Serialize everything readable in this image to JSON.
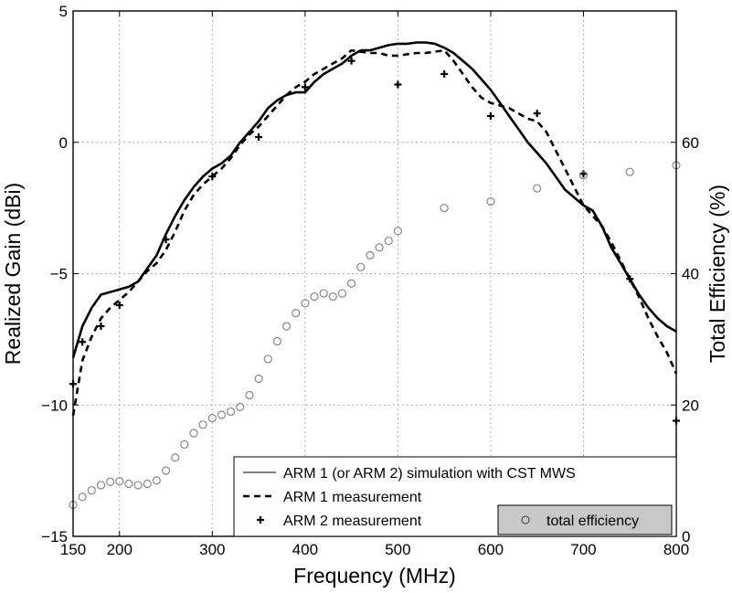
{
  "chart_data": {
    "type": "line",
    "xlabel": "Frequency (MHz)",
    "ylabel_left": "Realized Gain (dBi)",
    "ylabel_right": "Total Efficiency (%)",
    "xlim": [
      150,
      800
    ],
    "ylim_left": [
      -15,
      5
    ],
    "ylim_right": [
      0,
      80
    ],
    "grid": true,
    "x_ticks": [
      150,
      200,
      300,
      400,
      500,
      600,
      700,
      800
    ],
    "y_left_ticks": [
      -15,
      -10,
      -5,
      0,
      5
    ],
    "y_right_ticks": [
      0,
      20,
      40,
      60
    ],
    "legend_position": "bottom-right",
    "series": [
      {
        "name": "ARM 1 (or ARM 2) simulation with CST MWS",
        "axis": "left",
        "style": "solid",
        "x": [
          150,
          160,
          170,
          180,
          190,
          200,
          210,
          220,
          230,
          240,
          250,
          260,
          270,
          280,
          290,
          300,
          310,
          320,
          330,
          340,
          350,
          360,
          370,
          380,
          390,
          400,
          410,
          420,
          430,
          440,
          450,
          460,
          470,
          480,
          490,
          500,
          510,
          520,
          530,
          540,
          550,
          560,
          570,
          580,
          590,
          600,
          610,
          620,
          630,
          640,
          650,
          660,
          670,
          680,
          690,
          700,
          710,
          720,
          730,
          740,
          750,
          760,
          770,
          780,
          790,
          800
        ],
        "y": [
          -8.2,
          -7.0,
          -6.3,
          -5.8,
          -5.7,
          -5.6,
          -5.5,
          -5.3,
          -4.8,
          -4.3,
          -3.5,
          -2.8,
          -2.2,
          -1.7,
          -1.3,
          -1.0,
          -0.8,
          -0.5,
          0.0,
          0.4,
          0.8,
          1.3,
          1.6,
          1.8,
          1.9,
          1.9,
          2.3,
          2.6,
          2.8,
          3.0,
          3.3,
          3.5,
          3.5,
          3.6,
          3.7,
          3.75,
          3.75,
          3.8,
          3.8,
          3.75,
          3.6,
          3.4,
          3.1,
          2.8,
          2.4,
          2.0,
          1.5,
          1.0,
          0.5,
          0.0,
          -0.4,
          -0.8,
          -1.3,
          -1.8,
          -2.1,
          -2.4,
          -2.6,
          -3.2,
          -4.0,
          -4.6,
          -5.2,
          -5.8,
          -6.3,
          -6.7,
          -7.0,
          -7.2
        ]
      },
      {
        "name": "ARM 1 measurement",
        "axis": "left",
        "style": "dashed",
        "x": [
          150,
          160,
          170,
          180,
          190,
          200,
          210,
          220,
          230,
          240,
          250,
          260,
          270,
          280,
          290,
          300,
          310,
          320,
          330,
          340,
          350,
          360,
          370,
          380,
          390,
          400,
          410,
          420,
          430,
          440,
          450,
          460,
          470,
          480,
          490,
          500,
          510,
          520,
          530,
          540,
          550,
          560,
          570,
          580,
          590,
          600,
          610,
          620,
          630,
          640,
          650,
          660,
          670,
          680,
          690,
          700,
          710,
          720,
          730,
          740,
          750,
          760,
          770,
          780,
          790,
          800
        ],
        "y": [
          -10.4,
          -8.3,
          -7.4,
          -6.7,
          -6.3,
          -6.0,
          -5.7,
          -5.3,
          -4.9,
          -4.6,
          -4.1,
          -3.4,
          -2.6,
          -2.0,
          -1.6,
          -1.3,
          -1.0,
          -0.6,
          -0.1,
          0.3,
          0.6,
          1.0,
          1.4,
          1.8,
          2.1,
          2.3,
          2.6,
          2.8,
          3.0,
          3.2,
          3.5,
          3.45,
          3.4,
          3.4,
          3.3,
          3.3,
          3.35,
          3.4,
          3.4,
          3.45,
          3.5,
          3.1,
          2.6,
          2.1,
          1.7,
          1.5,
          1.4,
          1.3,
          1.1,
          0.9,
          0.8,
          0.4,
          -0.3,
          -1.0,
          -1.7,
          -2.4,
          -2.8,
          -3.2,
          -3.8,
          -4.5,
          -5.2,
          -5.9,
          -6.7,
          -7.4,
          -8.0,
          -8.8
        ]
      },
      {
        "name": "ARM 2 measurement",
        "axis": "left",
        "style": "plus",
        "x": [
          150,
          160,
          180,
          200,
          250,
          300,
          350,
          400,
          450,
          500,
          550,
          600,
          650,
          700,
          750,
          800
        ],
        "y": [
          -9.2,
          -7.6,
          -7.0,
          -6.2,
          -3.7,
          -1.3,
          0.2,
          2.1,
          3.1,
          2.2,
          2.6,
          1.0,
          1.1,
          -1.2,
          -5.2,
          -10.6
        ]
      },
      {
        "name": "total efficiency",
        "axis": "right",
        "style": "circle",
        "x": [
          150,
          160,
          170,
          180,
          190,
          200,
          210,
          220,
          230,
          240,
          250,
          260,
          270,
          280,
          290,
          300,
          310,
          320,
          330,
          340,
          350,
          360,
          370,
          380,
          390,
          400,
          410,
          420,
          430,
          440,
          450,
          460,
          470,
          480,
          490,
          500,
          550,
          600,
          650,
          700,
          750,
          800
        ],
        "y": [
          4.8,
          6.0,
          7.0,
          7.8,
          8.3,
          8.4,
          8.0,
          7.8,
          8.0,
          8.5,
          10.0,
          12.0,
          14.0,
          15.7,
          17.0,
          18.0,
          18.5,
          19.0,
          19.7,
          21.5,
          24.0,
          27.0,
          29.7,
          32.0,
          34.0,
          35.5,
          36.5,
          37.0,
          36.5,
          37.0,
          38.5,
          41.0,
          42.8,
          44.0,
          45.0,
          46.5,
          50.0,
          51.0,
          53.0,
          55.0,
          55.5,
          56.5
        ]
      }
    ]
  }
}
